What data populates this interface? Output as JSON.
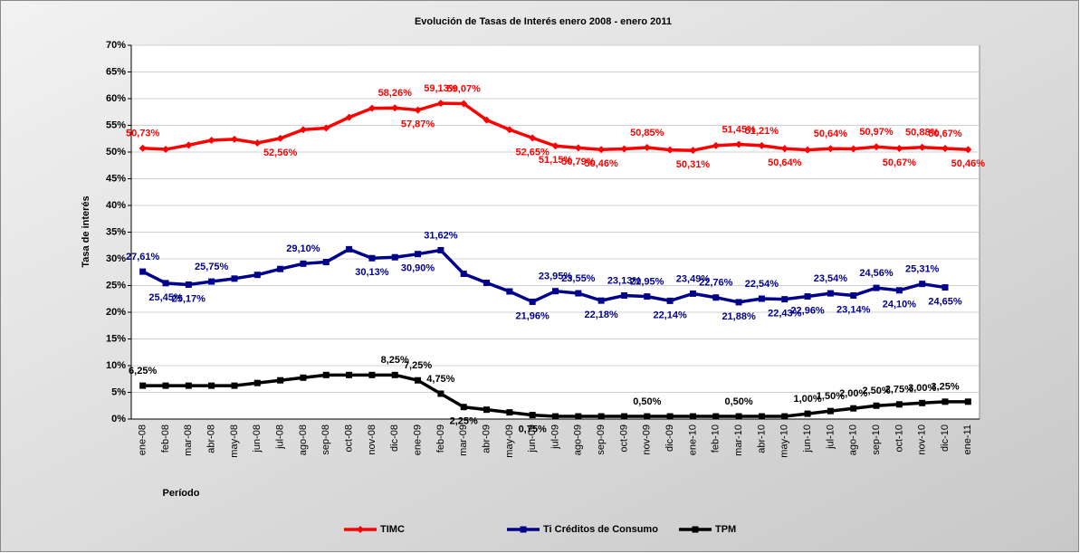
{
  "chart_data": {
    "type": "line",
    "title": "Evolución de Tasas de Interés enero 2008 -  enero 2011",
    "y_label": "Tasa de interés",
    "x_label": "Período",
    "categories": [
      "ene-08",
      "feb-08",
      "mar-08",
      "abr-08",
      "may-08",
      "jun-08",
      "jul-08",
      "ago-08",
      "sep-08",
      "oct-08",
      "nov-08",
      "dic-08",
      "ene-09",
      "feb-09",
      "mar-09",
      "abr-09",
      "may-09",
      "jun-09",
      "jul-09",
      "ago-09",
      "sep-09",
      "oct-09",
      "nov-09",
      "dic-09",
      "ene-10",
      "feb-10",
      "mar-10",
      "abr-10",
      "may-10",
      "jun-10",
      "jul-10",
      "ago-10",
      "sep-10",
      "oct-10",
      "nov-10",
      "dic-10",
      "ene-11"
    ],
    "ylim": [
      0,
      70
    ],
    "yticks": [
      {
        "value": 0,
        "label": "0%"
      },
      {
        "value": 5,
        "label": "5%"
      },
      {
        "value": 10,
        "label": "10%"
      },
      {
        "value": 15,
        "label": "15%"
      },
      {
        "value": 20,
        "label": "20%"
      },
      {
        "value": 25,
        "label": "25%"
      },
      {
        "value": 30,
        "label": "30%"
      },
      {
        "value": 35,
        "label": "35%"
      },
      {
        "value": 40,
        "label": "40%"
      },
      {
        "value": 45,
        "label": "45%"
      },
      {
        "value": 50,
        "label": "50%"
      },
      {
        "value": 55,
        "label": "55%"
      },
      {
        "value": 60,
        "label": "60%"
      },
      {
        "value": 65,
        "label": "65%"
      },
      {
        "value": 70,
        "label": "70%"
      }
    ],
    "grid": true,
    "legend": "bottom",
    "series": [
      {
        "name": "TIMC",
        "color": "#ff0000",
        "marker": "diamond",
        "values": [
          50.73,
          50.5,
          51.3,
          52.2,
          52.4,
          51.7,
          52.56,
          54.2,
          54.5,
          56.5,
          58.2,
          58.26,
          57.87,
          59.13,
          59.07,
          56.0,
          54.2,
          52.65,
          51.15,
          50.79,
          50.46,
          50.6,
          50.85,
          50.4,
          50.31,
          51.2,
          51.45,
          51.21,
          50.64,
          50.4,
          50.64,
          50.6,
          50.97,
          50.67,
          50.88,
          50.67,
          50.46
        ],
        "value_labels": [
          "50,73%",
          null,
          null,
          null,
          null,
          null,
          "52,56%",
          null,
          null,
          null,
          null,
          "58,26%",
          "57,87%",
          "59,13%",
          "59,07%",
          null,
          null,
          "52,65%",
          "51,15%",
          "50,79%",
          "50,46%",
          null,
          "50,85%",
          null,
          "50,31%",
          null,
          "51,45%",
          "51,21%",
          "50,64%",
          null,
          "50,64%",
          null,
          "50,97%",
          "50,67%",
          "50,88%",
          "50,67%",
          "50,46%"
        ]
      },
      {
        "name": "Ti Créditos de Consumo",
        "color": "#00008b",
        "marker": "square",
        "values": [
          27.61,
          25.45,
          25.17,
          25.75,
          26.3,
          27.0,
          28.1,
          29.1,
          29.4,
          31.8,
          30.13,
          30.3,
          30.9,
          31.62,
          27.2,
          25.5,
          23.9,
          21.96,
          23.95,
          23.55,
          22.18,
          23.13,
          22.95,
          22.14,
          23.49,
          22.76,
          21.88,
          22.54,
          22.43,
          22.96,
          23.54,
          23.14,
          24.56,
          24.1,
          25.31,
          24.65,
          null
        ],
        "value_labels": [
          "27,61%",
          "25,45%",
          "25,17%",
          "25,75%",
          null,
          null,
          null,
          "29,10%",
          null,
          null,
          "30,13%",
          null,
          "30,90%",
          "31,62%",
          null,
          null,
          null,
          "21,96%",
          "23,95%",
          "23,55%",
          "22,18%",
          "23,13%",
          "22,95%",
          "22,14%",
          "23,49%",
          "22,76%",
          "21,88%",
          "22,54%",
          "22,43%",
          "22,96%",
          "23,54%",
          "23,14%",
          "24,56%",
          "24,10%",
          "25,31%",
          "24,65%",
          null
        ]
      },
      {
        "name": "TPM",
        "color": "#000000",
        "marker": "square",
        "values": [
          6.25,
          6.25,
          6.25,
          6.25,
          6.25,
          6.75,
          7.25,
          7.75,
          8.25,
          8.25,
          8.25,
          8.25,
          7.25,
          4.75,
          2.25,
          1.75,
          1.25,
          0.75,
          0.5,
          0.5,
          0.5,
          0.5,
          0.5,
          0.5,
          0.5,
          0.5,
          0.5,
          0.5,
          0.5,
          1.0,
          1.5,
          2.0,
          2.5,
          2.75,
          3.0,
          3.25,
          3.25
        ],
        "value_labels": [
          "6,25%",
          null,
          null,
          null,
          null,
          null,
          null,
          null,
          null,
          null,
          null,
          "8,25%",
          "7,25%",
          "4,75%",
          "2,25%",
          null,
          null,
          "0,75%",
          null,
          null,
          null,
          null,
          "0,50%",
          null,
          null,
          null,
          "0,50%",
          null,
          null,
          "1,00%",
          "1,50%",
          "2,00%",
          "2,50%",
          "2,75%",
          "3,00%",
          "3,25%",
          null
        ]
      }
    ]
  }
}
